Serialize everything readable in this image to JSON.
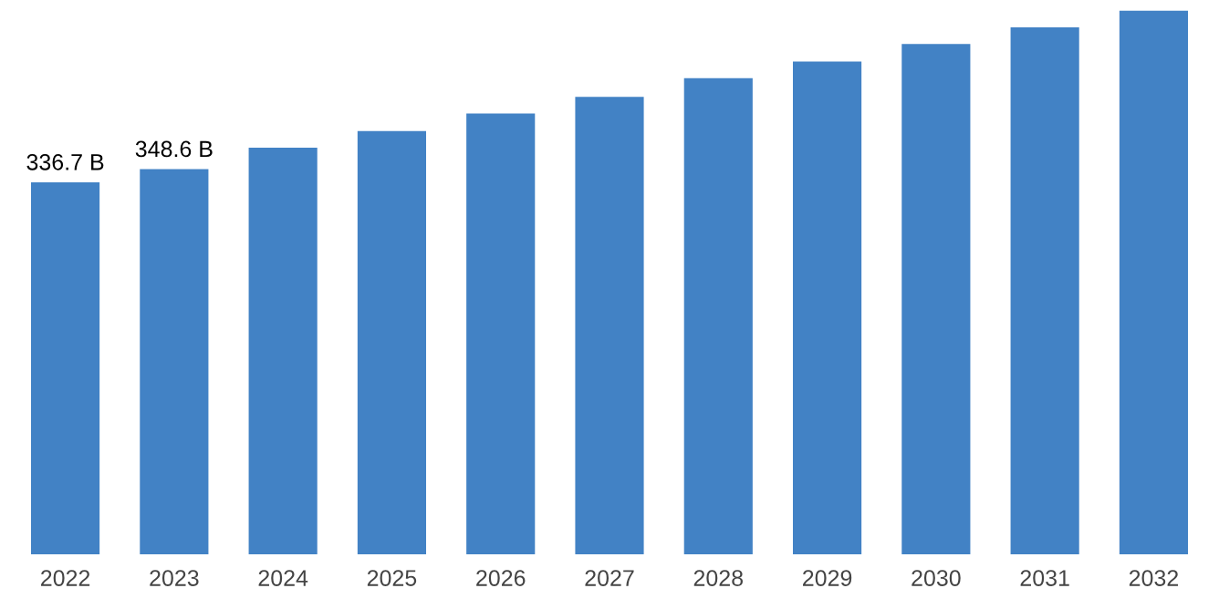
{
  "chart_data": {
    "type": "bar",
    "categories": [
      "2022",
      "2023",
      "2024",
      "2025",
      "2026",
      "2027",
      "2028",
      "2029",
      "2030",
      "2031",
      "2032"
    ],
    "values": [
      336.7,
      348.6,
      368,
      383,
      399,
      414,
      431,
      446,
      462,
      477,
      492
    ],
    "value_labels": [
      "336.7 B",
      "348.6 B",
      null,
      null,
      null,
      null,
      null,
      null,
      null,
      null,
      null
    ],
    "color": "#4282c5",
    "grid": false,
    "legend": false
  }
}
